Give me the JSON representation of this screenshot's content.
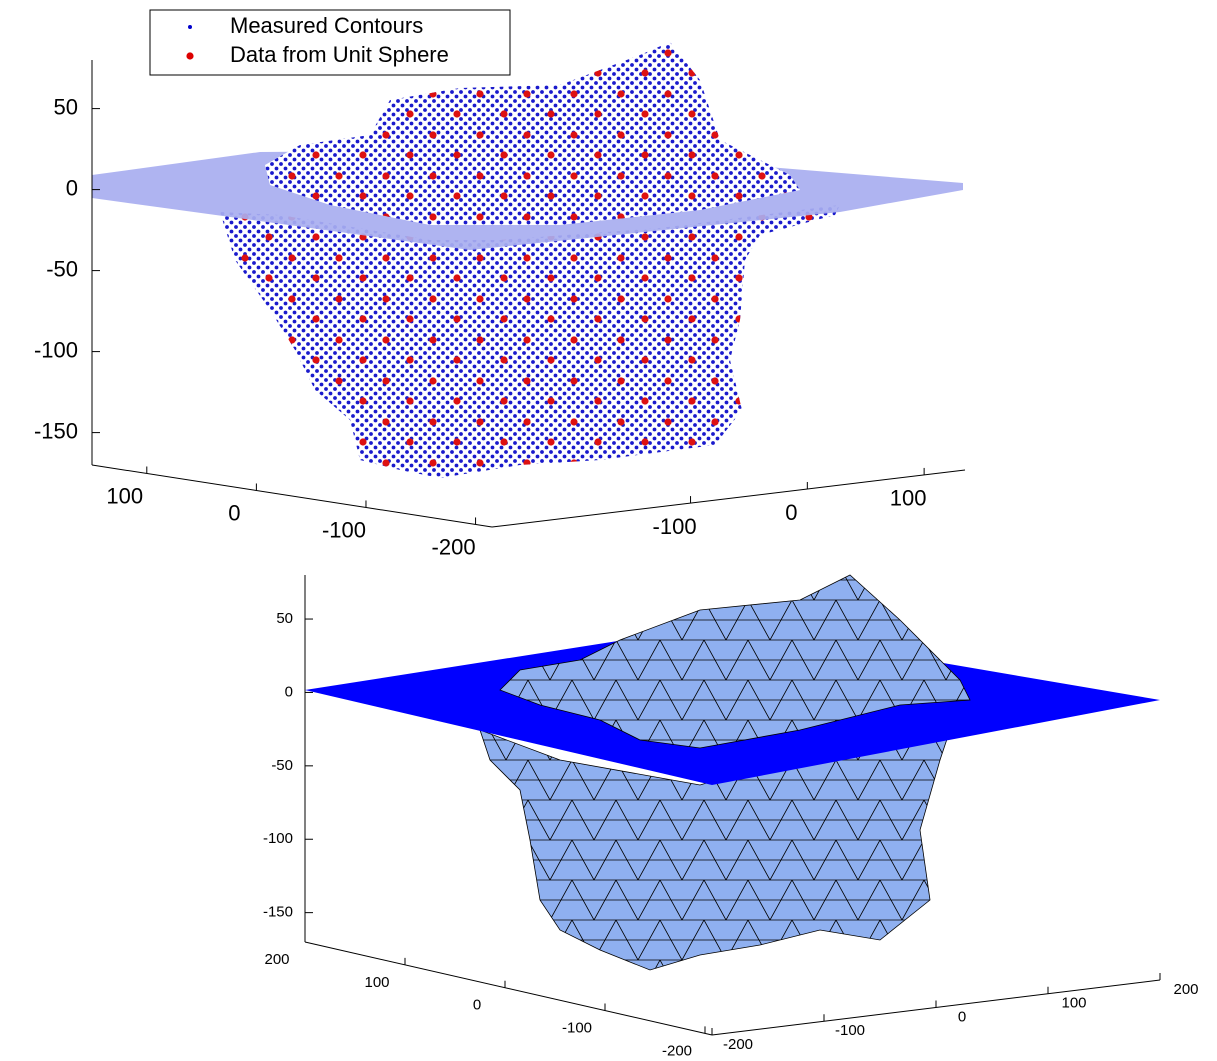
{
  "chart_data": [
    {
      "type": "scatter3d",
      "series": [
        {
          "name": "Measured Contours",
          "color": "#0000cc"
        },
        {
          "name": "Data from Unit Sphere",
          "color": "#dd0000"
        }
      ],
      "legend": "upper left",
      "zlim": [
        -170,
        80
      ],
      "zticks": [
        50,
        0,
        -50,
        -100,
        -150
      ],
      "xlim": [
        150,
        -215
      ],
      "xticks": [
        100,
        0,
        -100,
        -200
      ],
      "ylim": [
        -270,
        135
      ],
      "yticks": [
        -100,
        0,
        100
      ]
    },
    {
      "type": "surface3d",
      "zlim": [
        -170,
        80
      ],
      "zticks": [
        50,
        0,
        -50,
        -100,
        -150
      ],
      "xlim": [
        200,
        -207
      ],
      "xticks": [
        200,
        100,
        0,
        -100,
        -200
      ],
      "ylim": [
        -200,
        200
      ],
      "yticks": [
        -200,
        -100,
        0,
        100,
        200
      ]
    }
  ]
}
